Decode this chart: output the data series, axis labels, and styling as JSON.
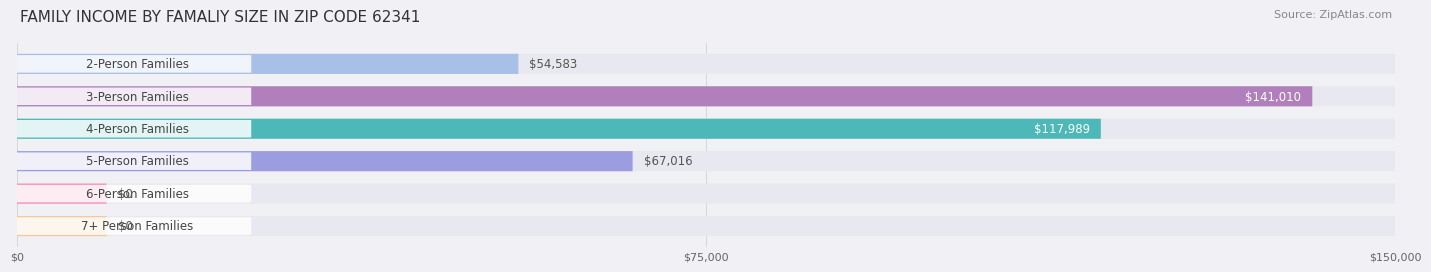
{
  "title": "FAMILY INCOME BY FAMALIY SIZE IN ZIP CODE 62341",
  "source": "Source: ZipAtlas.com",
  "categories": [
    "2-Person Families",
    "3-Person Families",
    "4-Person Families",
    "5-Person Families",
    "6-Person Families",
    "7+ Person Families"
  ],
  "values": [
    54583,
    141010,
    117989,
    67016,
    0,
    0
  ],
  "bar_colors": [
    "#a8bfe8",
    "#b07fbc",
    "#4db8b8",
    "#9b9de0",
    "#f48fb1",
    "#f5c99a"
  ],
  "label_colors": [
    "#555555",
    "#ffffff",
    "#ffffff",
    "#555555",
    "#555555",
    "#555555"
  ],
  "bg_color": "#f0f0f5",
  "bar_bg_color": "#e8e8f0",
  "xlim": [
    0,
    150000
  ],
  "xticks": [
    0,
    75000,
    150000
  ],
  "xtick_labels": [
    "$0",
    "$75,000",
    "$150,000"
  ],
  "value_labels": [
    "$54,583",
    "$141,010",
    "$117,989",
    "$67,016",
    "$0",
    "$0"
  ],
  "title_fontsize": 11,
  "source_fontsize": 8,
  "label_fontsize": 8.5,
  "value_fontsize": 8.5,
  "tick_fontsize": 8
}
